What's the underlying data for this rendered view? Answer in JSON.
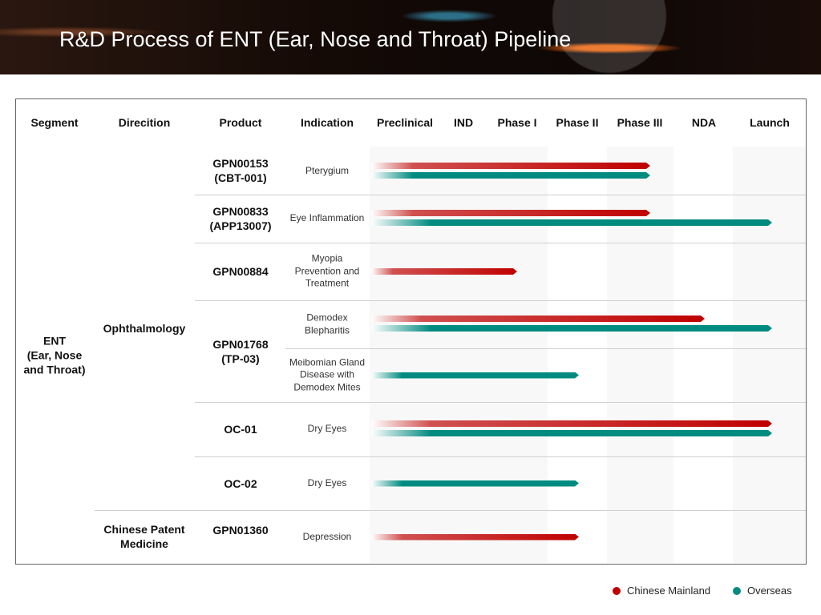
{
  "title": "R&D Process of ENT (Ear, Nose and Throat) Pipeline",
  "headers": [
    "Segment",
    "Direcition",
    "Product",
    "Indication",
    "Preclinical",
    "IND",
    "Phase I",
    "Phase II",
    "Phase III",
    "NDA",
    "Launch"
  ],
  "segment": "ENT\n(Ear, Nose\nand Throat)",
  "directions": [
    "Ophthalmology",
    "Chinese Patent\nMedicine"
  ],
  "products": [
    "GPN00153\n(CBT-001)",
    "GPN00833\n(APP13007)",
    "GPN00884",
    "GPN01768\n(TP-03)",
    "OC-01",
    "OC-02",
    "GPN01360"
  ],
  "indications": [
    "Pterygium",
    "Eye Inflammation",
    "Myopia\nPrevention and\nTreatment",
    "Demodex\nBlepharitis",
    "Meibomian Gland\nDisease with\nDemodex Mites",
    "Dry Eyes",
    "Dry Eyes",
    "Depression"
  ],
  "bars": [
    {
      "row": 0,
      "region": "Chinese Mainland",
      "stage": "Phase III"
    },
    {
      "row": 0,
      "region": "Overseas",
      "stage": "Phase III"
    },
    {
      "row": 1,
      "region": "Chinese Mainland",
      "stage": "Phase III"
    },
    {
      "row": 1,
      "region": "Overseas",
      "stage": "Launch"
    },
    {
      "row": 2,
      "region": "Chinese Mainland",
      "stage": "Phase I"
    },
    {
      "row": 3,
      "region": "Chinese Mainland",
      "stage": "NDA"
    },
    {
      "row": 3,
      "region": "Overseas",
      "stage": "Launch"
    },
    {
      "row": 4,
      "region": "Overseas",
      "stage": "Phase II"
    },
    {
      "row": 5,
      "region": "Chinese Mainland",
      "stage": "Launch"
    },
    {
      "row": 5,
      "region": "Overseas",
      "stage": "Launch"
    },
    {
      "row": 6,
      "region": "Overseas",
      "stage": "Phase II"
    },
    {
      "row": 7,
      "region": "Chinese Mainland",
      "stage": "Phase II"
    }
  ],
  "legend": [
    {
      "label": "Chinese Mainland",
      "color": "#c00000"
    },
    {
      "label": "Overseas",
      "color": "#008b80"
    }
  ]
}
